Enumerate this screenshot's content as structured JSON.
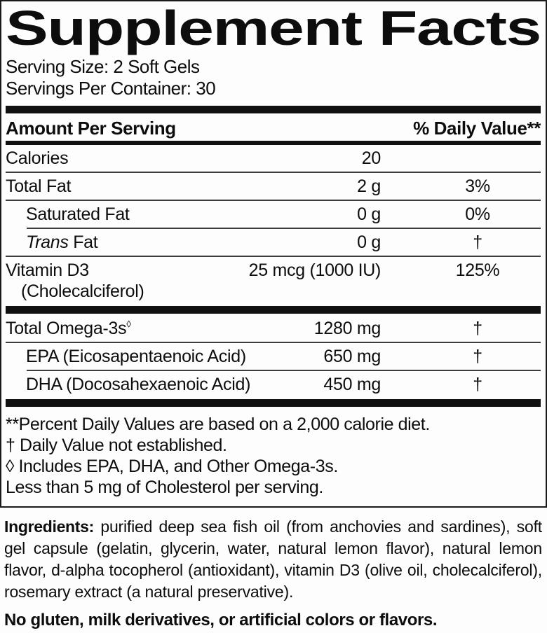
{
  "title": "Supplement Facts",
  "serving": {
    "size": "Serving Size: 2 Soft Gels",
    "per_container": "Servings Per Container: 30"
  },
  "table": {
    "header": {
      "left": "Amount Per Serving",
      "right": "% Daily Value**"
    },
    "rows": [
      {
        "name": "Calories",
        "amount": "20",
        "dv": "",
        "indent": false,
        "rule_after": "full"
      },
      {
        "name": "Total Fat",
        "amount": "2 g",
        "dv": "3%",
        "indent": false,
        "rule_after": "full"
      },
      {
        "name": "Saturated Fat",
        "amount": "0 g",
        "dv": "0%",
        "indent": true,
        "rule_after": "indent"
      },
      {
        "name_italic": "Trans",
        "name": " Fat",
        "amount": "0 g",
        "dv": "†",
        "indent": true,
        "rule_after": "full"
      },
      {
        "name": "Vitamin D3",
        "name_line2": "(Cholecalciferol)",
        "amount": "25 mcg (1000 IU)",
        "dv": "125%",
        "indent": false,
        "rule_after": "bar"
      },
      {
        "name": "Total Omega-3s",
        "sup": "◊",
        "amount": "1280 mg",
        "dv": "†",
        "indent": false,
        "rule_after": "full"
      },
      {
        "name": "EPA (Eicosapentaenoic Acid)",
        "amount": "650 mg",
        "dv": "†",
        "indent": true,
        "rule_after": "indent"
      },
      {
        "name": "DHA (Docosahexaenoic Acid)",
        "amount": "450 mg",
        "dv": "†",
        "indent": true,
        "rule_after": "bar"
      }
    ]
  },
  "footnotes": [
    "**Percent Daily Values are based on a 2,000 calorie diet.",
    "† Daily Value not established.",
    "◊ Includes EPA, DHA, and Other Omega-3s.",
    "Less than 5 mg of Cholesterol per serving."
  ],
  "ingredients": {
    "label": "Ingredients:",
    "text": "purified deep sea fish oil (from anchovies and sardines), soft gel capsule (gelatin, glycerin, water, natural lemon flavor), natural lemon flavor, d-alpha tocopherol (antioxidant), vitamin D3 (olive oil, cholecalciferol), rosemary extract (a natural preservative)."
  },
  "allergen_statement": "No gluten, milk derivatives, or artificial colors or flavors.",
  "colors": {
    "text": "#0d0d0d",
    "background": "#fdfdfd",
    "rule": "#3c3c3c",
    "bar": "#111111",
    "border": "#1a1a1a"
  }
}
